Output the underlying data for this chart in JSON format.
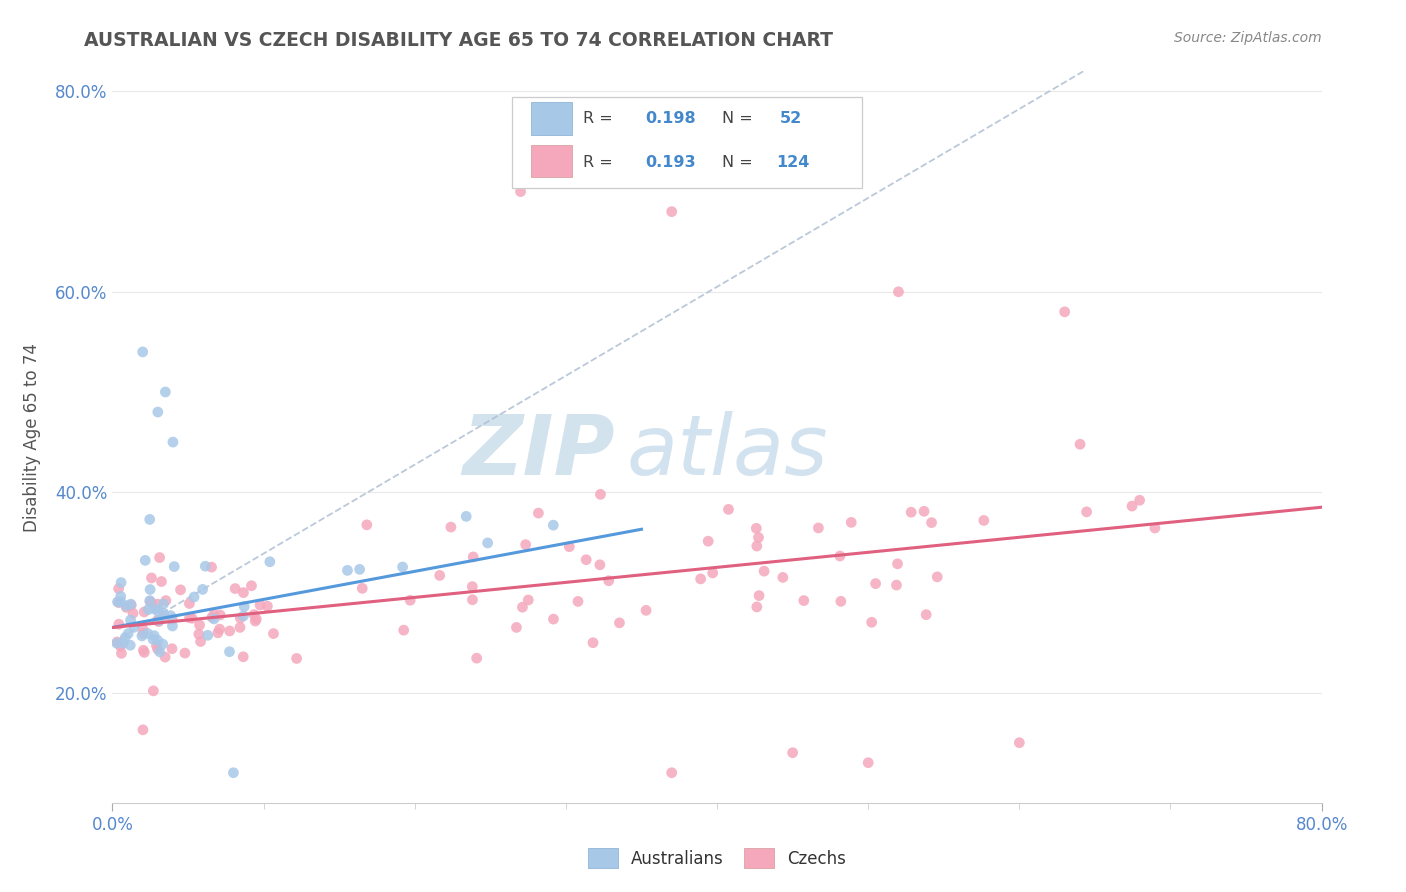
{
  "title": "AUSTRALIAN VS CZECH DISABILITY AGE 65 TO 74 CORRELATION CHART",
  "source": "Source: ZipAtlas.com",
  "ylabel": "Disability Age 65 to 74",
  "xlim": [
    0.0,
    0.8
  ],
  "ylim": [
    0.09,
    0.82
  ],
  "australian_R": 0.198,
  "australian_N": 52,
  "czech_R": 0.193,
  "czech_N": 124,
  "aus_color": "#a8c8e8",
  "czech_color": "#f5a8bc",
  "aus_line_color": "#5599dd",
  "czech_line_color": "#e06080",
  "dashed_line_color": "#aabbd0",
  "background_color": "#ffffff",
  "grid_color": "#e8e8e8",
  "watermark_color1": "#b0cce0",
  "watermark_color2": "#90b8d8",
  "title_color": "#555555",
  "axis_label_color": "#5588cc",
  "legend_text_color": "#444444",
  "legend_num_color": "#4488cc"
}
